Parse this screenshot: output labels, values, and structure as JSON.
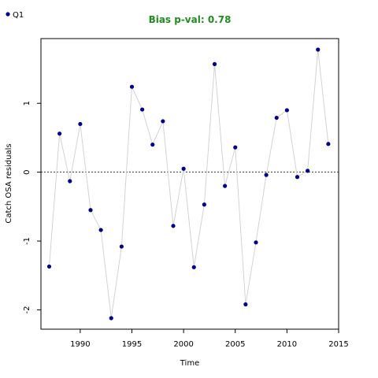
{
  "chart_data": {
    "type": "line",
    "title": "Bias p-val: 0.78",
    "title_color": "#228B22",
    "xlabel": "Time",
    "ylabel": "Catch OSA residuals",
    "xlim": [
      1986.2,
      2015.0
    ],
    "ylim": [
      -2.28,
      1.94
    ],
    "xticks": [
      1990,
      1995,
      2000,
      2005,
      2010,
      2015
    ],
    "yticks": [
      -2,
      -1,
      0,
      1
    ],
    "reference_line": 0,
    "legend": {
      "position": "top-left",
      "entries": [
        "Q1"
      ]
    },
    "colors": {
      "points": "#00008B",
      "line": "#D3D3D3",
      "reference": "#000000"
    },
    "series": [
      {
        "name": "Q1",
        "x": [
          1987,
          1988,
          1989,
          1990,
          1991,
          1992,
          1993,
          1994,
          1995,
          1996,
          1997,
          1998,
          1999,
          2000,
          2001,
          2002,
          2003,
          2004,
          2005,
          2006,
          2007,
          2008,
          2009,
          2010,
          2011,
          2012,
          2013,
          2014
        ],
        "values": [
          -1.37,
          0.56,
          -0.13,
          0.7,
          -0.55,
          -0.84,
          -2.12,
          -1.08,
          1.24,
          0.91,
          0.4,
          0.74,
          -0.78,
          0.05,
          -1.38,
          -0.47,
          1.57,
          -0.2,
          0.36,
          -1.92,
          -1.02,
          -0.04,
          0.79,
          0.9,
          -0.07,
          0.02,
          1.78,
          0.41
        ]
      }
    ]
  }
}
